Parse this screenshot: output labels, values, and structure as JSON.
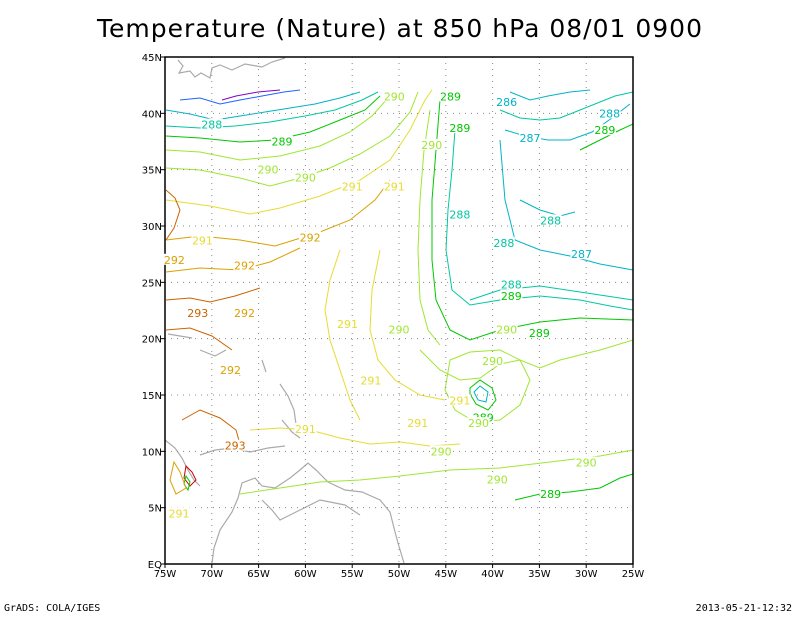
{
  "title": "Temperature (Nature) at 850 hPa 08/01 0900",
  "footer": {
    "left": "GrADS: COLA/IGES",
    "right": "2013-05-21-12:32"
  },
  "axes": {
    "lon_labels": [
      "75W",
      "70W",
      "65W",
      "60W",
      "55W",
      "50W",
      "45W",
      "40W",
      "35W",
      "30W",
      "25W"
    ],
    "lat_labels": [
      "EQ",
      "5N",
      "10N",
      "15N",
      "20N",
      "25N",
      "30N",
      "35N",
      "40N",
      "45N"
    ]
  },
  "colors": {
    "c286": "#1e64ff",
    "c287": "#00b4c8",
    "c288": "#00c8a0",
    "c289": "#00c800",
    "c290": "#a0e632",
    "c291": "#e6dc32",
    "c292": "#dca000",
    "c293": "#c86400",
    "c294": "#c80000",
    "land": "#aaaaaa",
    "grid": "#888888",
    "cold": "#8200c8"
  },
  "chart_data": {
    "type": "contour-map",
    "variable": "Temperature",
    "level": "850 hPa",
    "lon_range": [
      -75,
      -25
    ],
    "lat_range": [
      0,
      45
    ],
    "grid": true,
    "contour_labels": [
      {
        "text": "290",
        "lon": -50.5,
        "lat": 41.5,
        "c": "c290"
      },
      {
        "text": "289",
        "lon": -44.5,
        "lat": 41.5,
        "c": "c289"
      },
      {
        "text": "286",
        "lon": -38.5,
        "lat": 41.0,
        "c": "c287"
      },
      {
        "text": "288",
        "lon": -27.5,
        "lat": 40.0,
        "c": "c287"
      },
      {
        "text": "288",
        "lon": -70.0,
        "lat": 39.0,
        "c": "c288"
      },
      {
        "text": "289",
        "lon": -43.5,
        "lat": 38.7,
        "c": "c289"
      },
      {
        "text": "289",
        "lon": -28.0,
        "lat": 38.5,
        "c": "c289"
      },
      {
        "text": "287",
        "lon": -36.0,
        "lat": 37.8,
        "c": "c287"
      },
      {
        "text": "289",
        "lon": -62.5,
        "lat": 37.5,
        "c": "c289"
      },
      {
        "text": "290",
        "lon": -46.5,
        "lat": 37.2,
        "c": "c290"
      },
      {
        "text": "290",
        "lon": -64.0,
        "lat": 35.0,
        "c": "c290"
      },
      {
        "text": "290",
        "lon": -60.0,
        "lat": 34.3,
        "c": "c290"
      },
      {
        "text": "291",
        "lon": -55.0,
        "lat": 33.5,
        "c": "c291"
      },
      {
        "text": "291",
        "lon": -50.5,
        "lat": 33.5,
        "c": "c291"
      },
      {
        "text": "288",
        "lon": -43.5,
        "lat": 31.0,
        "c": "c288"
      },
      {
        "text": "288",
        "lon": -33.8,
        "lat": 30.5,
        "c": "c288"
      },
      {
        "text": "288",
        "lon": -38.8,
        "lat": 28.5,
        "c": "c288"
      },
      {
        "text": "287",
        "lon": -30.5,
        "lat": 27.5,
        "c": "c287"
      },
      {
        "text": "291",
        "lon": -71.0,
        "lat": 28.7,
        "c": "c291"
      },
      {
        "text": "292",
        "lon": -59.5,
        "lat": 29.0,
        "c": "c292"
      },
      {
        "text": "292",
        "lon": -74.0,
        "lat": 27.0,
        "c": "c292"
      },
      {
        "text": "292",
        "lon": -66.5,
        "lat": 26.5,
        "c": "c292"
      },
      {
        "text": "288",
        "lon": -38.0,
        "lat": 24.8,
        "c": "c288"
      },
      {
        "text": "289",
        "lon": -38.0,
        "lat": 23.8,
        "c": "c289"
      },
      {
        "text": "293",
        "lon": -71.5,
        "lat": 22.3,
        "c": "c293"
      },
      {
        "text": "292",
        "lon": -66.5,
        "lat": 22.3,
        "c": "c292"
      },
      {
        "text": "291",
        "lon": -55.5,
        "lat": 21.3,
        "c": "c291"
      },
      {
        "text": "290",
        "lon": -50.0,
        "lat": 20.8,
        "c": "c290"
      },
      {
        "text": "290",
        "lon": -38.5,
        "lat": 20.8,
        "c": "c290"
      },
      {
        "text": "289",
        "lon": -35.0,
        "lat": 20.5,
        "c": "c289"
      },
      {
        "text": "290",
        "lon": -40.0,
        "lat": 18.0,
        "c": "c290"
      },
      {
        "text": "292",
        "lon": -68.0,
        "lat": 17.2,
        "c": "c292"
      },
      {
        "text": "291",
        "lon": -53.0,
        "lat": 16.3,
        "c": "c291"
      },
      {
        "text": "291",
        "lon": -43.5,
        "lat": 14.5,
        "c": "c291"
      },
      {
        "text": "289",
        "lon": -41.0,
        "lat": 13.0,
        "c": "c289"
      },
      {
        "text": "290",
        "lon": -41.5,
        "lat": 12.5,
        "c": "c290"
      },
      {
        "text": "291",
        "lon": -48.0,
        "lat": 12.5,
        "c": "c291"
      },
      {
        "text": "291",
        "lon": -60.0,
        "lat": 12.0,
        "c": "c291"
      },
      {
        "text": "293",
        "lon": -67.5,
        "lat": 10.5,
        "c": "c293"
      },
      {
        "text": "290",
        "lon": -45.5,
        "lat": 10.0,
        "c": "c290"
      },
      {
        "text": "290",
        "lon": -30.0,
        "lat": 9.0,
        "c": "c290"
      },
      {
        "text": "290",
        "lon": -39.5,
        "lat": 7.5,
        "c": "c290"
      },
      {
        "text": "289",
        "lon": -33.8,
        "lat": 6.2,
        "c": "c289"
      },
      {
        "text": "291",
        "lon": -73.5,
        "lat": 4.5,
        "c": "c291"
      }
    ]
  }
}
